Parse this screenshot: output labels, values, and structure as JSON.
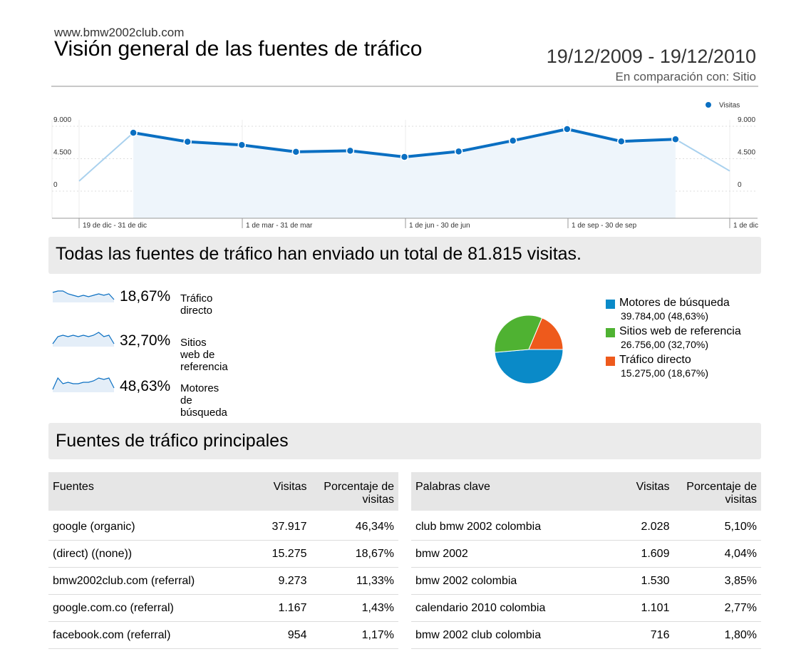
{
  "header": {
    "site": "www.bmw2002club.com",
    "title": "Visión general de las fuentes de tráfico",
    "date_range": "19/12/2009 - 19/12/2010",
    "comparison": "En comparación con: Sitio"
  },
  "chart_data": [
    {
      "type": "line",
      "legend": [
        "Visitas"
      ],
      "legend_position": "top-right",
      "y_ticks": [
        "9.000",
        "4.500",
        "0"
      ],
      "x_ticks": [
        "19 de dic - 31 de dic",
        "1 de mar - 31 de mar",
        "1 de jun - 30 de jun",
        "1 de sep - 30 de sep",
        "1 de dic"
      ],
      "ylim": [
        0,
        9000
      ],
      "series": [
        {
          "name": "Visitas",
          "color": "#0a6fc2",
          "values": [
            1400,
            8100,
            6850,
            6400,
            5450,
            5600,
            4750,
            5500,
            7000,
            8600,
            6900,
            7200,
            2800
          ]
        }
      ]
    },
    {
      "type": "pie",
      "series": [
        {
          "name": "Motores de búsqueda",
          "value": 39784,
          "label": "39.784,00 (48,63%)",
          "color": "#0a8ac8"
        },
        {
          "name": "Sitios web de referencia",
          "value": 26756,
          "label": "26.756,00 (32,70%)",
          "color": "#4fb232"
        },
        {
          "name": "Tráfico directo",
          "value": 15275,
          "label": "15.275,00 (18,67%)",
          "color": "#ee5a1c"
        }
      ]
    }
  ],
  "summary": {
    "headline": "Todas las fuentes de tráfico han enviado un total de 81.815 visitas.",
    "sources": [
      {
        "pct": "18,67%",
        "name": "Tráfico directo",
        "spark": [
          7,
          8,
          8,
          6,
          5,
          4,
          5,
          4,
          5,
          6,
          5,
          6,
          2
        ]
      },
      {
        "pct": "32,70%",
        "name": "Sitios web de referencia",
        "spark": [
          2,
          7,
          8,
          7,
          8,
          7,
          8,
          7,
          8,
          10,
          7,
          8,
          2
        ]
      },
      {
        "pct": "48,63%",
        "name": "Motores de búsqueda",
        "spark": [
          2,
          10,
          6,
          7,
          6,
          6,
          7,
          7,
          8,
          10,
          9,
          10,
          3
        ]
      }
    ]
  },
  "top_sources": {
    "heading": "Fuentes de tráfico principales",
    "sources_table": {
      "columns": [
        "Fuentes",
        "Visitas",
        "Porcentaje de visitas"
      ],
      "rows": [
        [
          "google (organic)",
          "37.917",
          "46,34%"
        ],
        [
          "(direct) ((none))",
          "15.275",
          "18,67%"
        ],
        [
          "bmw2002club.com (referral)",
          "9.273",
          "11,33%"
        ],
        [
          "google.com.co (referral)",
          "1.167",
          "1,43%"
        ],
        [
          "facebook.com (referral)",
          "954",
          "1,17%"
        ]
      ]
    },
    "keywords_table": {
      "columns": [
        "Palabras clave",
        "Visitas",
        "Porcentaje de visitas"
      ],
      "rows": [
        [
          "club bmw 2002 colombia",
          "2.028",
          "5,10%"
        ],
        [
          "bmw 2002",
          "1.609",
          "4,04%"
        ],
        [
          "bmw 2002 colombia",
          "1.530",
          "3,85%"
        ],
        [
          "calendario 2010 colombia",
          "1.101",
          "2,77%"
        ],
        [
          "bmw 2002 club colombia",
          "716",
          "1,80%"
        ]
      ]
    }
  }
}
